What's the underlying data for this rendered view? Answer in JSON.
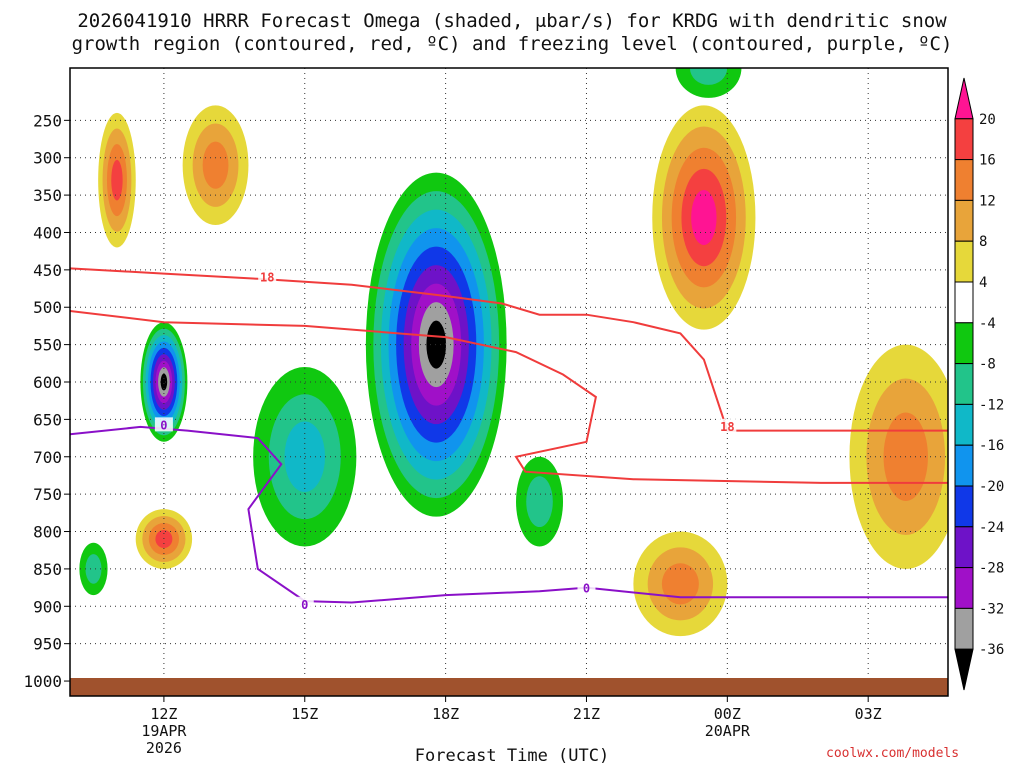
{
  "title": {
    "line1": "2026041910 HRRR Forecast Omega (shaded, μbar/s) for KRDG with dendritic snow",
    "line2": "growth region (contoured, red, ºC) and freezing level (contoured, purple, ºC)"
  },
  "credit": "coolwx.com/models",
  "chart_data": {
    "type": "heatmap",
    "xlabel": "Forecast Time (UTC)",
    "ylabel": "",
    "x_range_hours": [
      10,
      28.7
    ],
    "y_range_hPa": [
      180,
      1020
    ],
    "y_ticks": [
      250,
      300,
      350,
      400,
      450,
      500,
      550,
      600,
      650,
      700,
      750,
      800,
      850,
      900,
      950,
      1000
    ],
    "x_ticks": [
      {
        "hour": 12,
        "label": "12Z",
        "sub1": "19APR",
        "sub2": "2026"
      },
      {
        "hour": 15,
        "label": "15Z",
        "sub1": "",
        "sub2": ""
      },
      {
        "hour": 18,
        "label": "18Z",
        "sub1": "",
        "sub2": ""
      },
      {
        "hour": 21,
        "label": "21Z",
        "sub1": "",
        "sub2": ""
      },
      {
        "hour": 24,
        "label": "00Z",
        "sub1": "20APR",
        "sub2": ""
      },
      {
        "hour": 27,
        "label": "03Z",
        "sub1": "",
        "sub2": ""
      }
    ],
    "colorbar": {
      "labels": [
        "20",
        "16",
        "12",
        "8",
        "4",
        "-4",
        "-8",
        "-12",
        "-16",
        "-20",
        "-24",
        "-28",
        "-32",
        "-36"
      ],
      "colors": [
        "#ff1493",
        "#f44040",
        "#ef8030",
        "#e8a43a",
        "#e6d83a",
        "#ffffff",
        "#10c810",
        "#22c48a",
        "#10b8c8",
        "#1094ee",
        "#1038e8",
        "#6e12c8",
        "#a010c8",
        "#a0a0a0",
        "#000000"
      ]
    },
    "omega_features": [
      {
        "hour": 11.0,
        "p": 330,
        "rx": 0.4,
        "ry": 90,
        "levels": [
          4,
          8,
          12,
          16
        ]
      },
      {
        "hour": 13.1,
        "p": 310,
        "rx": 0.7,
        "ry": 80,
        "levels": [
          4,
          8,
          12
        ]
      },
      {
        "hour": 12.0,
        "p": 810,
        "rx": 0.6,
        "ry": 40,
        "levels": [
          4,
          8,
          12,
          16
        ]
      },
      {
        "hour": 10.5,
        "p": 850,
        "rx": 0.3,
        "ry": 35,
        "levels": [
          -4,
          -8
        ]
      },
      {
        "hour": 12.0,
        "p": 600,
        "rx": 0.5,
        "ry": 80,
        "levels": [
          -4,
          -8,
          -12,
          -16,
          -20,
          -24,
          -28,
          -32,
          -36
        ]
      },
      {
        "hour": 15.0,
        "p": 700,
        "rx": 1.1,
        "ry": 120,
        "levels": [
          -4,
          -8,
          -12
        ]
      },
      {
        "hour": 17.8,
        "p": 550,
        "rx": 1.5,
        "ry": 230,
        "levels": [
          -4,
          -8,
          -12,
          -16,
          -20,
          -24,
          -28,
          -32,
          -36
        ]
      },
      {
        "hour": 20.0,
        "p": 760,
        "rx": 0.5,
        "ry": 60,
        "levels": [
          -4,
          -8
        ]
      },
      {
        "hour": 23.5,
        "p": 380,
        "rx": 1.1,
        "ry": 150,
        "levels": [
          4,
          8,
          12,
          16,
          20
        ]
      },
      {
        "hour": 23.0,
        "p": 870,
        "rx": 1.0,
        "ry": 70,
        "levels": [
          4,
          8,
          12
        ]
      },
      {
        "hour": 23.6,
        "p": 180,
        "rx": 0.7,
        "ry": 40,
        "levels": [
          -4,
          -8
        ]
      },
      {
        "hour": 27.8,
        "p": 700,
        "rx": 1.2,
        "ry": 150,
        "levels": [
          4,
          8,
          12
        ]
      }
    ],
    "contour_labels": [
      {
        "hour": 14.2,
        "p": 460,
        "text": "18",
        "color": "#f03c3c"
      },
      {
        "hour": 24.0,
        "p": 660,
        "text": "18",
        "color": "#f03c3c"
      },
      {
        "hour": 12.0,
        "p": 658,
        "text": "0",
        "color": "#8a10c8"
      },
      {
        "hour": 15.0,
        "p": 898,
        "text": "0",
        "color": "#8a10c8"
      },
      {
        "hour": 21.0,
        "p": 876,
        "text": "0",
        "color": "#8a10c8"
      }
    ],
    "dgz_top": [
      [
        10,
        448
      ],
      [
        12,
        455
      ],
      [
        14,
        462
      ],
      [
        16,
        470
      ],
      [
        18,
        485
      ],
      [
        19.2,
        495
      ],
      [
        20,
        510
      ],
      [
        21,
        510
      ],
      [
        22,
        520
      ],
      [
        23,
        535
      ],
      [
        23.5,
        570
      ],
      [
        24,
        665
      ],
      [
        26,
        665
      ],
      [
        28.7,
        665
      ]
    ],
    "dgz_bottom": [
      [
        10,
        505
      ],
      [
        12,
        520
      ],
      [
        15,
        525
      ],
      [
        18,
        540
      ],
      [
        19.5,
        560
      ],
      [
        20.5,
        590
      ],
      [
        21.2,
        620
      ],
      [
        21.0,
        680
      ],
      [
        19.5,
        700
      ],
      [
        19.7,
        720
      ],
      [
        22,
        730
      ],
      [
        26,
        735
      ],
      [
        28.7,
        735
      ]
    ],
    "freezing_level": [
      [
        10,
        670
      ],
      [
        11.5,
        660
      ],
      [
        12.5,
        665
      ],
      [
        14,
        675
      ],
      [
        14.5,
        710
      ],
      [
        13.8,
        770
      ],
      [
        14.0,
        850
      ],
      [
        15.0,
        893
      ],
      [
        16,
        895
      ],
      [
        18,
        885
      ],
      [
        20,
        880
      ],
      [
        21,
        875
      ],
      [
        23,
        888
      ],
      [
        28.7,
        888
      ]
    ]
  }
}
